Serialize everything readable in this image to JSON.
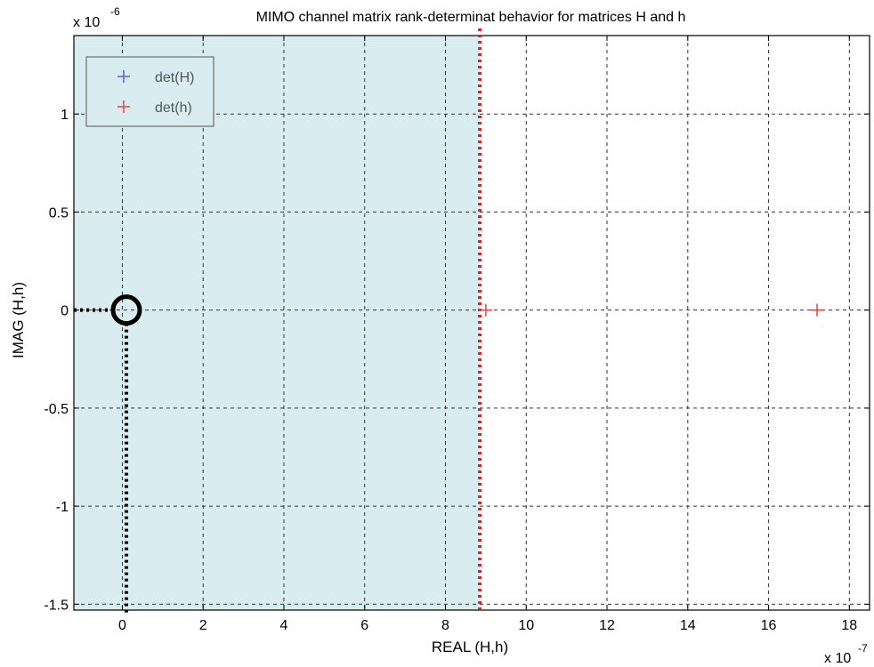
{
  "chart_data": {
    "type": "scatter",
    "title": "MIMO channel matrix rank-determinat behavior for matrices H and h",
    "xlabel": "REAL (H,h)",
    "ylabel": "IMAG (H,h)",
    "x_exponent_label": "x 10",
    "x_exponent_power": "-7",
    "y_exponent_label": "x 10",
    "y_exponent_power": "-6",
    "xlim": [
      -1.2,
      18.5
    ],
    "ylim": [
      -1.53,
      1.4
    ],
    "x_ticks": [
      0,
      2,
      4,
      6,
      8,
      10,
      12,
      14,
      16,
      18
    ],
    "y_ticks": [
      -1.5,
      -1,
      -0.5,
      0,
      0.5,
      1
    ],
    "x_tick_labels": [
      "0",
      "2",
      "4",
      "6",
      "8",
      "10",
      "12",
      "14",
      "16",
      "18"
    ],
    "y_tick_labels": [
      "-1.5",
      "-1",
      "-0.5",
      "0",
      "0.5",
      "1"
    ],
    "grid": true,
    "legend_position": "top-left",
    "series": [
      {
        "name": "det(H)",
        "color": "#5a5cf0",
        "marker": "plus",
        "points": []
      },
      {
        "name": "det(h)",
        "color": "#e8443a",
        "marker": "plus",
        "points": [
          [
            9.0,
            0
          ],
          [
            17.2,
            0
          ]
        ]
      }
    ],
    "annotations": {
      "shaded_region_x": [
        -1.2,
        8.85
      ],
      "shaded_color": "#d9edf0",
      "threshold_x": 8.85,
      "threshold_color": "#e02020",
      "circle_center": [
        0.1,
        0
      ],
      "guide_color": "#000000"
    }
  }
}
